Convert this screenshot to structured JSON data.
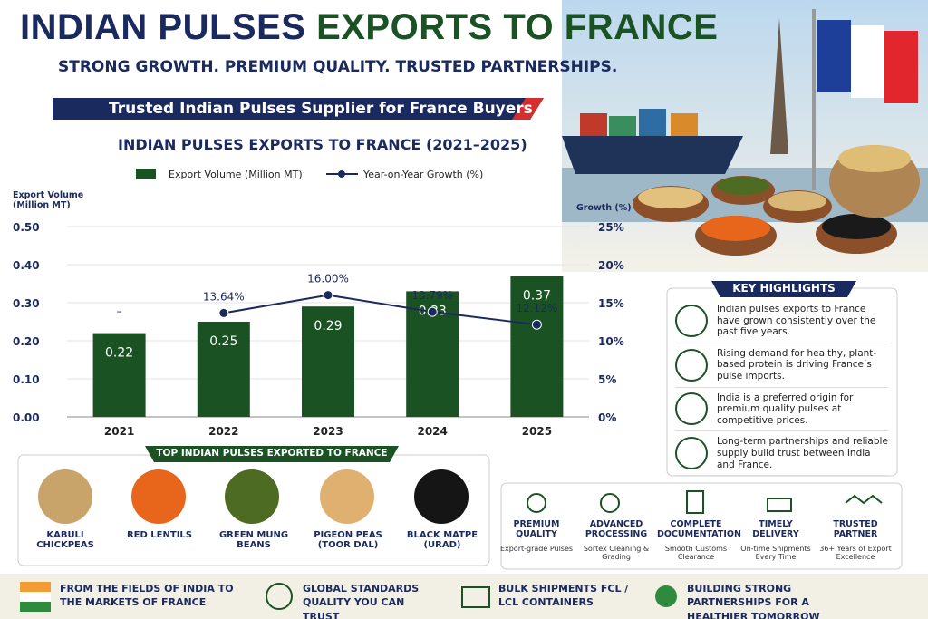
{
  "header": {
    "title_a": "INDIAN PULSES",
    "title_b": "EXPORTS TO FRANCE",
    "tagline": "STRONG GROWTH. PREMIUM QUALITY. TRUSTED PARTNERSHIPS.",
    "badge": "Trusted Indian Pulses Supplier for France Buyers"
  },
  "chart_data": {
    "type": "bar",
    "title": "INDIAN PULSES EXPORTS TO FRANCE (2021–2025)",
    "categories": [
      "2021",
      "2022",
      "2023",
      "2024",
      "2025"
    ],
    "series": [
      {
        "name": "Export Volume (Million MT)",
        "color": "#1a5224",
        "values": [
          0.22,
          0.25,
          0.29,
          0.33,
          0.37
        ]
      },
      {
        "name": "Year-on-Year Growth (%)",
        "type": "line",
        "axis": "y2",
        "color": "#1b2a5e",
        "values": [
          null,
          13.64,
          16.0,
          13.79,
          12.12
        ],
        "value_labels": [
          "–",
          "13.64%",
          "16.00%",
          "13.79%",
          "12.12%"
        ]
      }
    ],
    "ylabel": "Export Volume (Million MT)",
    "y2label": "Growth (%)",
    "ylim": [
      0,
      0.5
    ],
    "yticks": [
      {
        "value": 0,
        "label": "0.00"
      },
      {
        "value": 0.1,
        "label": "0.10"
      },
      {
        "value": 0.2,
        "label": "0.20"
      },
      {
        "value": 0.3,
        "label": "0.30"
      },
      {
        "value": 0.4,
        "label": "0.40"
      },
      {
        "value": 0.5,
        "label": "0.50"
      }
    ],
    "y2lim": [
      0,
      25
    ],
    "y2ticks": [
      {
        "value": 0,
        "label": "0%"
      },
      {
        "value": 5,
        "label": "5%"
      },
      {
        "value": 10,
        "label": "10%"
      },
      {
        "value": 15,
        "label": "15%"
      },
      {
        "value": 20,
        "label": "20%"
      },
      {
        "value": 25,
        "label": "25%"
      }
    ],
    "grid": true
  },
  "highlights": {
    "title": "KEY HIGHLIGHTS",
    "items": [
      "Indian pulses exports to France have grown consistently over the past five years.",
      "Rising demand for healthy, plant-based protein is driving France’s pulse imports.",
      "India is a preferred origin for premium quality pulses at competitive prices.",
      "Long-term partnerships and reliable supply build trust between India and France."
    ]
  },
  "products": {
    "title": "TOP INDIAN PULSES EXPORTED TO FRANCE",
    "items": [
      "KABULI CHICKPEAS",
      "RED LENTILS",
      "GREEN MUNG BEANS",
      "PIGEON PEAS (TOOR DAL)",
      "BLACK MATPE (URAD)"
    ]
  },
  "features": [
    {
      "title": "PREMIUM QUALITY",
      "text": "Export-grade Pulses"
    },
    {
      "title": "ADVANCED PROCESSING",
      "text": "Sortex Cleaning & Grading"
    },
    {
      "title": "COMPLETE DOCUMENTATION",
      "text": "Smooth Customs Clearance"
    },
    {
      "title": "TIMELY DELIVERY",
      "text": "On-time Shipments Every Time"
    },
    {
      "title": "TRUSTED PARTNER",
      "text": "36+ Years of Export Excellence"
    }
  ],
  "footer": [
    "FROM THE FIELDS OF INDIA TO THE MARKETS OF FRANCE",
    "GLOBAL STANDARDS QUALITY YOU CAN TRUST",
    "BULK SHIPMENTS FCL / LCL CONTAINERS",
    "BUILDING STRONG PARTNERSHIPS FOR A HEALTHIER TOMORROW"
  ]
}
